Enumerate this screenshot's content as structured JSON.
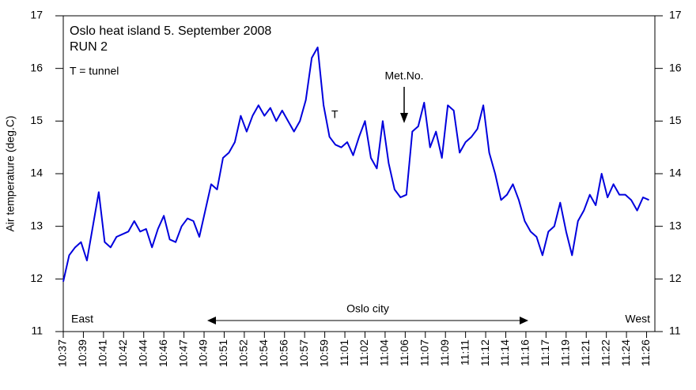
{
  "chart_data": {
    "type": "line",
    "title": "Oslo heat island 5. September 2008",
    "subtitle": "RUN 2",
    "note": "T = tunnel",
    "ylabel": "Air temperature (deg.C)",
    "annotations": {
      "tunnel": "T",
      "station": "Met.No.",
      "city": "Oslo city",
      "east": "East",
      "west": "West"
    },
    "xlim": [
      637.5,
      687.5
    ],
    "ylim": [
      11,
      17
    ],
    "yticks": [
      11,
      12,
      13,
      14,
      15,
      16,
      17
    ],
    "xticks": [
      {
        "value": 637.5,
        "label": "10:37"
      },
      {
        "value": 639.2,
        "label": "10:39"
      },
      {
        "value": 640.9,
        "label": "10:41"
      },
      {
        "value": 642.6,
        "label": "10:42"
      },
      {
        "value": 644.3,
        "label": "10:44"
      },
      {
        "value": 646.0,
        "label": "10:46"
      },
      {
        "value": 647.7,
        "label": "10:47"
      },
      {
        "value": 649.4,
        "label": "10:49"
      },
      {
        "value": 651.1,
        "label": "10:51"
      },
      {
        "value": 652.8,
        "label": "10:52"
      },
      {
        "value": 654.5,
        "label": "10:54"
      },
      {
        "value": 656.2,
        "label": "10:56"
      },
      {
        "value": 657.9,
        "label": "10:57"
      },
      {
        "value": 659.6,
        "label": "10:59"
      },
      {
        "value": 661.3,
        "label": "11:01"
      },
      {
        "value": 663.0,
        "label": "11:02"
      },
      {
        "value": 664.7,
        "label": "11:04"
      },
      {
        "value": 666.4,
        "label": "11:06"
      },
      {
        "value": 668.1,
        "label": "11:07"
      },
      {
        "value": 669.8,
        "label": "11:09"
      },
      {
        "value": 671.5,
        "label": "11:11"
      },
      {
        "value": 673.2,
        "label": "11:12"
      },
      {
        "value": 674.9,
        "label": "11:14"
      },
      {
        "value": 676.6,
        "label": "11:16"
      },
      {
        "value": 678.3,
        "label": "11:17"
      },
      {
        "value": 680.0,
        "label": "11:19"
      },
      {
        "value": 681.7,
        "label": "11:21"
      },
      {
        "value": 683.4,
        "label": "11:22"
      },
      {
        "value": 685.1,
        "label": "11:24"
      },
      {
        "value": 686.8,
        "label": "11:26"
      }
    ],
    "x": [
      637.5,
      638,
      638.5,
      639,
      639.5,
      640,
      640.5,
      641,
      641.5,
      642,
      642.5,
      643,
      643.5,
      644,
      644.5,
      645,
      645.5,
      646,
      646.5,
      647,
      647.5,
      648,
      648.5,
      649,
      649.5,
      650,
      650.5,
      651,
      651.5,
      652,
      652.5,
      653,
      653.5,
      654,
      654.5,
      655,
      655.5,
      656,
      656.5,
      657,
      657.5,
      658,
      658.5,
      659,
      659.5,
      660,
      660.5,
      661,
      661.5,
      662,
      662.5,
      663,
      663.5,
      664,
      664.5,
      665,
      665.5,
      666,
      666.5,
      667,
      667.5,
      668,
      668.5,
      669,
      669.5,
      670,
      670.5,
      671,
      671.5,
      672,
      672.5,
      673,
      673.5,
      674,
      674.5,
      675,
      675.5,
      676,
      676.5,
      677,
      677.5,
      678,
      678.5,
      679,
      679.5,
      680,
      680.5,
      681,
      681.5,
      682,
      682.5,
      683,
      683.5,
      684,
      684.5,
      685,
      685.5,
      686,
      686.5,
      687
    ],
    "series": [
      {
        "name": "Air temperature",
        "color": "#0000dd",
        "values": [
          11.95,
          12.45,
          12.6,
          12.7,
          12.35,
          13.0,
          13.65,
          12.7,
          12.6,
          12.8,
          12.85,
          12.9,
          13.1,
          12.9,
          12.95,
          12.6,
          12.95,
          13.2,
          12.75,
          12.7,
          13.0,
          13.15,
          13.1,
          12.8,
          13.3,
          13.8,
          13.7,
          14.3,
          14.4,
          14.6,
          15.1,
          14.8,
          15.1,
          15.3,
          15.1,
          15.25,
          15.0,
          15.2,
          15.0,
          14.8,
          15.0,
          15.4,
          16.2,
          16.4,
          15.3,
          14.7,
          14.55,
          14.5,
          14.6,
          14.35,
          14.7,
          15.0,
          14.3,
          14.1,
          15.0,
          14.2,
          13.7,
          13.55,
          13.6,
          14.8,
          14.9,
          15.35,
          14.5,
          14.8,
          14.3,
          15.3,
          15.2,
          14.4,
          14.6,
          14.7,
          14.85,
          15.3,
          14.4,
          14.0,
          13.5,
          13.6,
          13.8,
          13.5,
          13.1,
          12.9,
          12.8,
          12.45,
          12.9,
          13.0,
          13.45,
          12.9,
          12.45,
          13.1,
          13.3,
          13.6,
          13.4,
          14.0,
          13.55,
          13.8,
          13.6,
          13.6,
          13.5,
          13.3,
          13.55,
          13.5
        ]
      }
    ]
  }
}
